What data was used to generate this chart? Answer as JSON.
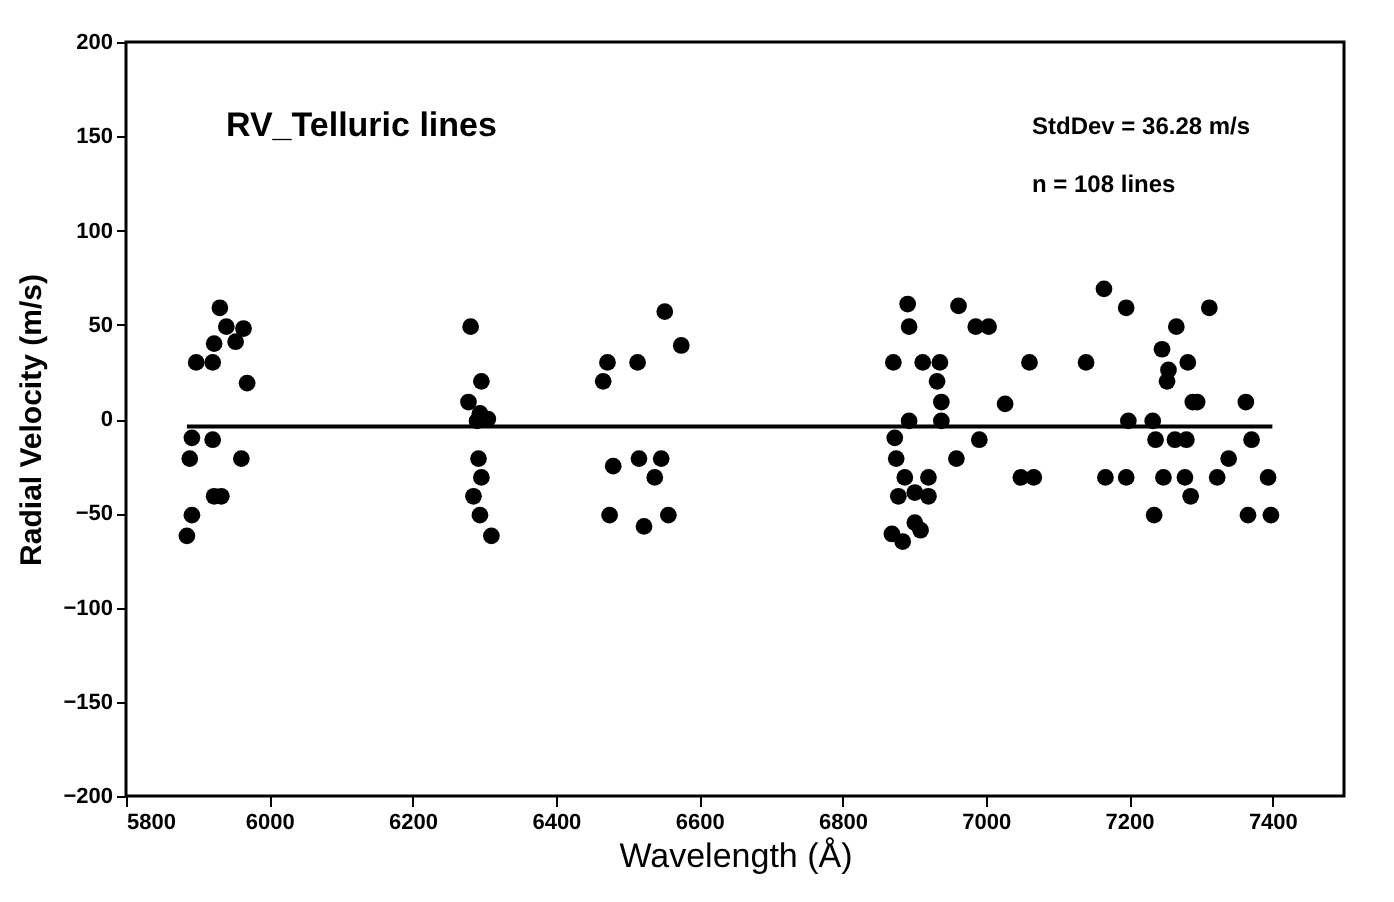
{
  "chart_data": {
    "type": "scatter",
    "title": "RV_Telluric lines",
    "xlabel": "Wavelength (Å)",
    "ylabel": "Radial Velocity (m/s)",
    "annotations": [
      "StdDev = 36.28 m/s",
      "n = 108 lines"
    ],
    "xlim": [
      5800,
      7500
    ],
    "xticks": [
      5800,
      6000,
      6200,
      6400,
      6600,
      6800,
      7000,
      7200,
      7400
    ],
    "ylim": [
      -200,
      200
    ],
    "yticks": [
      -200,
      -150,
      -100,
      -50,
      0,
      50,
      100,
      150,
      200
    ],
    "grid": false,
    "marker": "circle",
    "series": [
      {
        "color": "#000000",
        "x": [
          5931,
          5940,
          5964,
          5953,
          5923,
          5898,
          5921,
          5969,
          5892,
          5921,
          5889,
          5961,
          5923,
          5933,
          5892,
          5885,
          6281,
          6296,
          6278,
          6294,
          6305,
          6290,
          6292,
          6296,
          6285,
          6294,
          6310,
          6552,
          6575,
          6472,
          6514,
          6466,
          6480,
          6516,
          6547,
          6538,
          6475,
          6523,
          6557,
          6891,
          6893,
          6962,
          6986,
          7004,
          6871,
          6912,
          6936,
          7061,
          6932,
          6938,
          7027,
          6893,
          6938,
          6873,
          6991,
          6875,
          6959,
          6887,
          6920,
          6878,
          6901,
          6920,
          6901,
          6869,
          6884,
          6909,
          7049,
          7067,
          7165,
          7196,
          7312,
          7266,
          7246,
          7140,
          7282,
          7255,
          7253,
          7289,
          7295,
          7363,
          7199,
          7233,
          7237,
          7264,
          7280,
          7371,
          7339,
          7167,
          7196,
          7248,
          7278,
          7323,
          7394,
          7286,
          7235,
          7366,
          7398
        ],
        "values": [
          59,
          49,
          48,
          41,
          40,
          30,
          30,
          19,
          -10,
          -11,
          -21,
          -21,
          -41,
          -41,
          -51,
          -62,
          49,
          20,
          9,
          3,
          0,
          -1,
          -21,
          -31,
          -41,
          -51,
          -62,
          57,
          39,
          30,
          30,
          20,
          -25,
          -21,
          -21,
          -31,
          -51,
          -57,
          -51,
          61,
          49,
          60,
          49,
          49,
          30,
          30,
          30,
          30,
          20,
          9,
          8,
          -1,
          -1,
          -10,
          -11,
          -21,
          -21,
          -31,
          -31,
          -41,
          -39,
          -41,
          -55,
          -61,
          -65,
          -59,
          -31,
          -31,
          69,
          59,
          59,
          49,
          37,
          30,
          30,
          26,
          20,
          9,
          9,
          9,
          -1,
          -1,
          -11,
          -11,
          -11,
          -11,
          -21,
          -31,
          -31,
          -31,
          -31,
          -31,
          -31,
          -41,
          -51,
          -51,
          -51
        ]
      },
      {
        "type": "line",
        "color": "#000000",
        "line_style": "solid",
        "marker": "none",
        "x": [
          5885,
          7400
        ],
        "values": [
          -4,
          -4
        ]
      }
    ]
  }
}
